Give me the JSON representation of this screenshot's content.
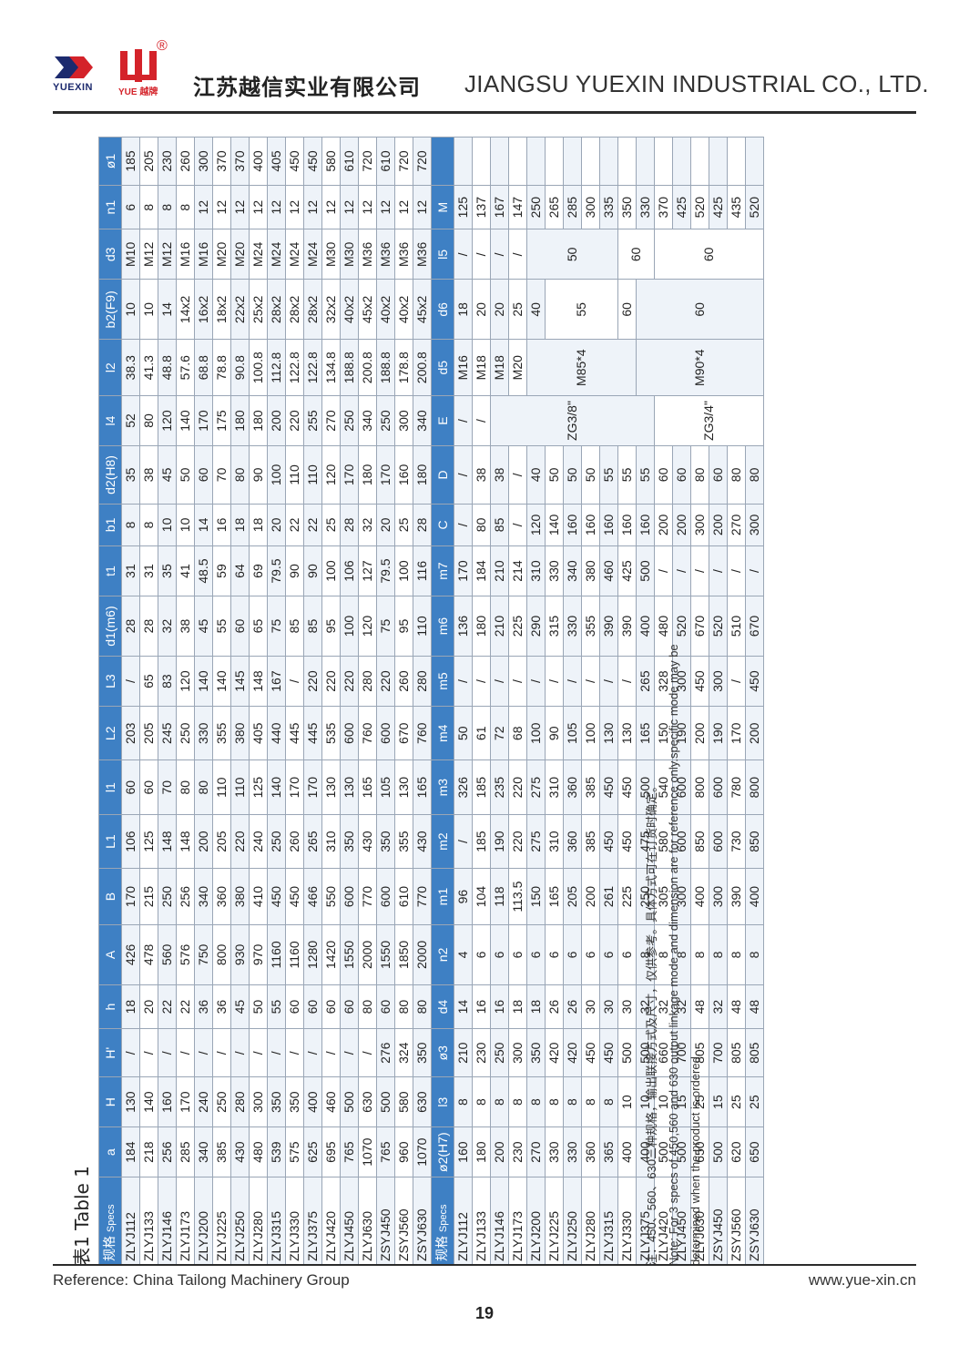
{
  "header": {
    "logo_left_text": "YUEXIN",
    "logo_right_text": "YUE 越牌",
    "registered_mark": "®",
    "company_cn": "江苏越信实业有限公司",
    "company_en": "JIANGSU YUEXIN INDUSTRIAL CO., LTD.",
    "colors": {
      "brand_blue": "#1c2a6e",
      "brand_red": "#d4232a",
      "table_header": "#3e80c4"
    }
  },
  "table_title": "表1 Table 1",
  "table1": {
    "spec_cn": "规格",
    "spec_en": "Specs",
    "headers": [
      "a",
      "H",
      "H'",
      "h",
      "A",
      "B",
      "L1",
      "l1",
      "L2",
      "L3",
      "d1(m6)",
      "t1",
      "b1",
      "d2(H8)",
      "l4",
      "l2",
      "b2(F9)",
      "d3",
      "n1",
      "ø1"
    ],
    "rows": [
      [
        "ZLYJ112",
        "184",
        "130",
        "/",
        "18",
        "426",
        "170",
        "106",
        "60",
        "203",
        "/",
        "28",
        "31",
        "8",
        "35",
        "52",
        "38.3",
        "10",
        "M10",
        "6",
        "185"
      ],
      [
        "ZLYJ133",
        "218",
        "140",
        "/",
        "20",
        "478",
        "215",
        "125",
        "60",
        "205",
        "65",
        "28",
        "31",
        "8",
        "38",
        "80",
        "41.3",
        "10",
        "M12",
        "8",
        "205"
      ],
      [
        "ZLYJ146",
        "256",
        "160",
        "/",
        "22",
        "560",
        "250",
        "148",
        "70",
        "245",
        "83",
        "32",
        "35",
        "10",
        "45",
        "120",
        "48.8",
        "14",
        "M12",
        "8",
        "230"
      ],
      [
        "ZLYJ173",
        "285",
        "170",
        "/",
        "22",
        "576",
        "256",
        "148",
        "80",
        "250",
        "120",
        "38",
        "41",
        "10",
        "50",
        "140",
        "57.6",
        "14x2",
        "M16",
        "8",
        "260"
      ],
      [
        "ZLYJ200",
        "340",
        "240",
        "/",
        "36",
        "750",
        "340",
        "200",
        "80",
        "330",
        "140",
        "45",
        "48.5",
        "14",
        "60",
        "170",
        "68.8",
        "16x2",
        "M16",
        "12",
        "300"
      ],
      [
        "ZLYJ225",
        "385",
        "250",
        "/",
        "36",
        "800",
        "360",
        "205",
        "110",
        "355",
        "140",
        "55",
        "59",
        "16",
        "70",
        "175",
        "78.8",
        "18x2",
        "M20",
        "12",
        "370"
      ],
      [
        "ZLYJ250",
        "430",
        "280",
        "/",
        "45",
        "930",
        "380",
        "220",
        "110",
        "380",
        "145",
        "60",
        "64",
        "18",
        "80",
        "180",
        "90.8",
        "22x2",
        "M20",
        "12",
        "370"
      ],
      [
        "ZLYJ280",
        "480",
        "300",
        "/",
        "50",
        "970",
        "410",
        "240",
        "125",
        "405",
        "148",
        "65",
        "69",
        "18",
        "90",
        "180",
        "100.8",
        "25x2",
        "M24",
        "12",
        "400"
      ],
      [
        "ZLYJ315",
        "539",
        "350",
        "/",
        "55",
        "1160",
        "450",
        "250",
        "140",
        "440",
        "167",
        "75",
        "79.5",
        "20",
        "100",
        "200",
        "112.8",
        "28x2",
        "M24",
        "12",
        "405"
      ],
      [
        "ZLYJ330",
        "575",
        "350",
        "/",
        "60",
        "1160",
        "450",
        "260",
        "170",
        "445",
        "/",
        "85",
        "90",
        "22",
        "110",
        "220",
        "122.8",
        "28x2",
        "M24",
        "12",
        "450"
      ],
      [
        "ZLYJ375",
        "625",
        "400",
        "/",
        "60",
        "1280",
        "466",
        "265",
        "170",
        "445",
        "220",
        "85",
        "90",
        "22",
        "110",
        "255",
        "122.8",
        "28x2",
        "M24",
        "12",
        "450"
      ],
      [
        "ZLYJ420",
        "695",
        "460",
        "/",
        "60",
        "1420",
        "550",
        "310",
        "130",
        "535",
        "220",
        "95",
        "100",
        "25",
        "120",
        "270",
        "134.8",
        "32x2",
        "M30",
        "12",
        "580"
      ],
      [
        "ZLYJ450",
        "765",
        "500",
        "/",
        "60",
        "1550",
        "600",
        "350",
        "130",
        "600",
        "220",
        "100",
        "106",
        "28",
        "170",
        "250",
        "188.8",
        "40x2",
        "M30",
        "12",
        "610"
      ],
      [
        "ZLYJ630",
        "1070",
        "630",
        "/",
        "80",
        "2000",
        "770",
        "430",
        "165",
        "760",
        "280",
        "120",
        "127",
        "32",
        "180",
        "340",
        "200.8",
        "45x2",
        "M36",
        "12",
        "720"
      ],
      [
        "ZSYJ450",
        "765",
        "500",
        "276",
        "60",
        "1550",
        "600",
        "350",
        "105",
        "600",
        "220",
        "75",
        "79.5",
        "20",
        "170",
        "250",
        "188.8",
        "40x2",
        "M36",
        "12",
        "610"
      ],
      [
        "ZSYJ560",
        "960",
        "580",
        "324",
        "80",
        "1850",
        "610",
        "355",
        "130",
        "670",
        "260",
        "95",
        "100",
        "25",
        "160",
        "300",
        "178.8",
        "40x2",
        "M36",
        "12",
        "720"
      ],
      [
        "ZSYJ630",
        "1070",
        "630",
        "350",
        "80",
        "2000",
        "770",
        "430",
        "165",
        "760",
        "280",
        "110",
        "116",
        "28",
        "180",
        "340",
        "200.8",
        "45x2",
        "M36",
        "12",
        "720"
      ]
    ]
  },
  "table2": {
    "spec_cn": "规格",
    "spec_en": "Specs",
    "headers": [
      "ø2(H7)",
      "l3",
      "ø3",
      "d4",
      "n2",
      "m1",
      "m2",
      "m3",
      "m4",
      "m5",
      "m6",
      "m7",
      "C",
      "D",
      "E",
      "d5",
      "d6",
      "l5",
      "M"
    ],
    "merged": {
      "E": "ZG3/8\"",
      "E2": "ZG3/4\"",
      "d5": "M85*4",
      "d5_2": "M90*4",
      "d6": "55",
      "d6_2": "60",
      "l5": "50",
      "l5_2": "60"
    },
    "rows": [
      [
        "ZLYJ112",
        "160",
        "8",
        "210",
        "14",
        "4",
        "96",
        "/",
        "326",
        "50",
        "/",
        "136",
        "170",
        "/",
        "/",
        "/",
        "M16",
        "18",
        "/",
        "125"
      ],
      [
        "ZLYJ133",
        "180",
        "8",
        "230",
        "16",
        "6",
        "104",
        "185",
        "185",
        "61",
        "/",
        "180",
        "184",
        "80",
        "38",
        "/",
        "M18",
        "20",
        "/",
        "137"
      ],
      [
        "ZLYJ146",
        "200",
        "8",
        "250",
        "16",
        "6",
        "118",
        "190",
        "235",
        "72",
        "/",
        "210",
        "210",
        "85",
        "38",
        "",
        "M18",
        "20",
        "/",
        "167"
      ],
      [
        "ZLYJ173",
        "230",
        "8",
        "300",
        "18",
        "6",
        "113.5",
        "220",
        "220",
        "68",
        "/",
        "225",
        "214",
        "/",
        "/",
        "",
        "M20",
        "25",
        "/",
        "147"
      ],
      [
        "ZLYJ200",
        "270",
        "8",
        "350",
        "18",
        "6",
        "150",
        "275",
        "275",
        "100",
        "/",
        "290",
        "310",
        "120",
        "40",
        "",
        "",
        "40",
        "",
        "250"
      ],
      [
        "ZLYJ225",
        "330",
        "8",
        "420",
        "26",
        "6",
        "165",
        "310",
        "310",
        "90",
        "/",
        "315",
        "330",
        "140",
        "50",
        "",
        "",
        "",
        "",
        "265"
      ],
      [
        "ZLYJ250",
        "330",
        "8",
        "420",
        "26",
        "6",
        "205",
        "360",
        "360",
        "105",
        "/",
        "330",
        "340",
        "160",
        "50",
        "",
        "",
        "",
        "",
        "285"
      ],
      [
        "ZLYJ280",
        "360",
        "8",
        "450",
        "30",
        "6",
        "200",
        "385",
        "385",
        "100",
        "/",
        "355",
        "380",
        "160",
        "50",
        "",
        "",
        "",
        "",
        "300"
      ],
      [
        "ZLYJ315",
        "365",
        "8",
        "450",
        "30",
        "6",
        "261",
        "450",
        "450",
        "130",
        "/",
        "390",
        "460",
        "160",
        "55",
        "",
        "",
        "",
        "",
        "335"
      ],
      [
        "ZLYJ330",
        "400",
        "10",
        "500",
        "30",
        "6",
        "225",
        "450",
        "450",
        "130",
        "/",
        "390",
        "425",
        "160",
        "55",
        "",
        "",
        "60",
        "",
        "350"
      ],
      [
        "ZLYJ375",
        "400",
        "10",
        "500",
        "32",
        "8",
        "250",
        "475",
        "500",
        "165",
        "265",
        "400",
        "500",
        "160",
        "55",
        "",
        "",
        "",
        "",
        "330"
      ],
      [
        "ZLYJ420",
        "500",
        "10",
        "660",
        "32",
        "8",
        "305",
        "580",
        "540",
        "150",
        "328",
        "480",
        "/",
        "200",
        "60",
        "",
        "",
        "",
        "",
        "370"
      ],
      [
        "ZLYJ450",
        "500",
        "15",
        "700",
        "32",
        "8",
        "300",
        "600",
        "600",
        "190",
        "300",
        "520",
        "/",
        "200",
        "60",
        "",
        "",
        "",
        "",
        "425"
      ],
      [
        "ZLYJ630",
        "650",
        "25",
        "805",
        "48",
        "8",
        "400",
        "850",
        "800",
        "200",
        "450",
        "670",
        "/",
        "300",
        "80",
        "",
        "",
        "",
        "",
        "520"
      ],
      [
        "ZSYJ450",
        "500",
        "15",
        "700",
        "32",
        "8",
        "300",
        "600",
        "600",
        "190",
        "300",
        "520",
        "/",
        "200",
        "60",
        "",
        "",
        "",
        "",
        "425"
      ],
      [
        "ZSYJ560",
        "620",
        "25",
        "805",
        "48",
        "8",
        "390",
        "730",
        "780",
        "170",
        "/",
        "510",
        "/",
        "270",
        "80",
        "",
        "",
        "",
        "",
        "435"
      ],
      [
        "ZSYJ630",
        "650",
        "25",
        "805",
        "48",
        "8",
        "400",
        "850",
        "800",
        "200",
        "450",
        "670",
        "/",
        "300",
        "80",
        "",
        "",
        "",
        "",
        "520"
      ]
    ]
  },
  "notes": {
    "cn": "注：450、560、630三种规格，输出联接方式及尺寸，仅供参考。具体方式可在订货时确定。",
    "en1": "Note: For 3 specs of 450,560 and 630 output linkage mode and dimension are for reference only.specific mode may be",
    "en2": "determined when the product is ordered."
  },
  "footer": {
    "reference": "Reference:  China Tailong Machinery Group",
    "website": "www.yue-xin.cn",
    "page_number": "19"
  }
}
